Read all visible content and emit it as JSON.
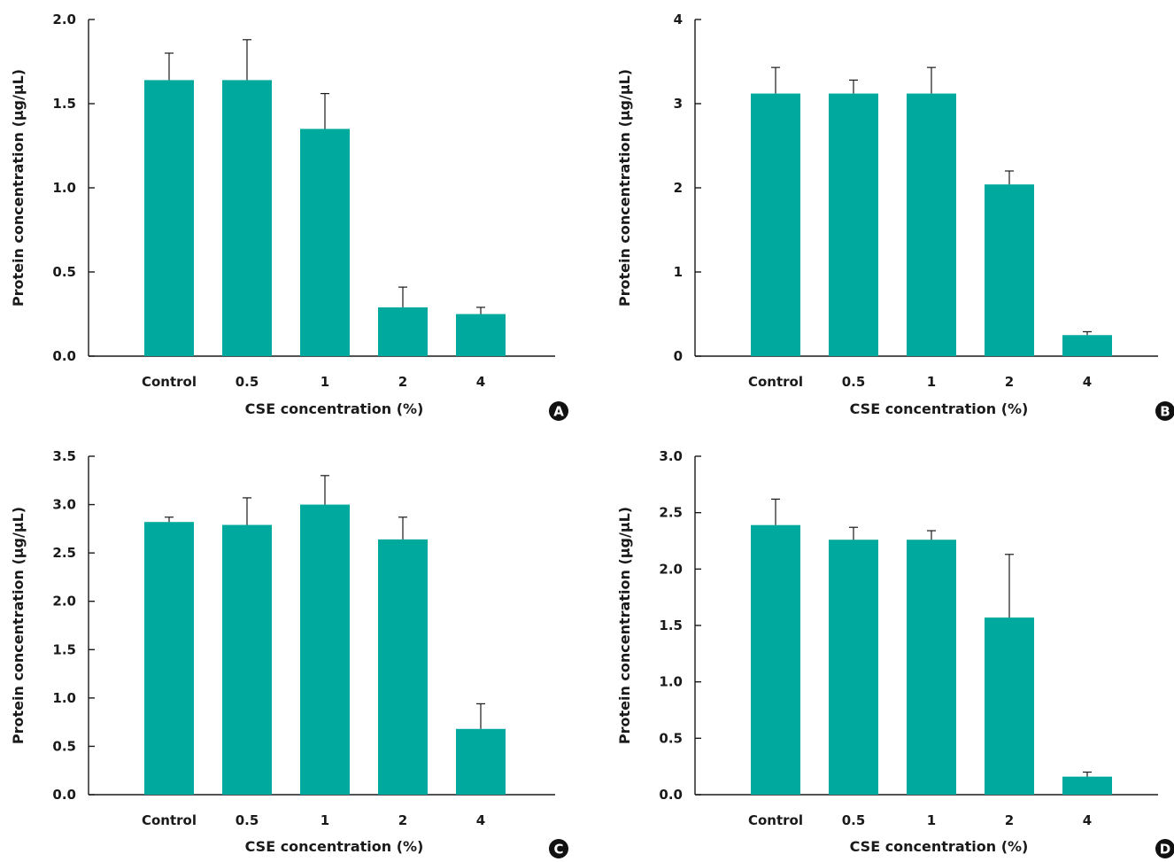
{
  "colors": {
    "bar": "#00a99d",
    "axis": "#1a1a1a",
    "badge": "#111111"
  },
  "chart_data": [
    {
      "type": "bar",
      "panel_label": "A",
      "categories": [
        "Control",
        "0.5",
        "1",
        "2",
        "4"
      ],
      "values": [
        1.64,
        1.64,
        1.35,
        0.29,
        0.25
      ],
      "errors": [
        0.16,
        0.24,
        0.21,
        0.12,
        0.04
      ],
      "xlabel": "CSE concentration (%)",
      "ylabel": "Protein concentration (μg/μL)",
      "ylim": [
        0,
        2.0
      ],
      "yticks": [
        "0.0",
        "0.5",
        "1.0",
        "1.5",
        "2.0"
      ],
      "grid": false
    },
    {
      "type": "bar",
      "panel_label": "B",
      "categories": [
        "Control",
        "0.5",
        "1",
        "2",
        "4"
      ],
      "values": [
        3.12,
        3.12,
        3.12,
        2.04,
        0.25
      ],
      "errors": [
        0.31,
        0.16,
        0.31,
        0.16,
        0.04
      ],
      "xlabel": "CSE concentration (%)",
      "ylabel": "Protein concentration (μg/μL)",
      "ylim": [
        0,
        4
      ],
      "yticks": [
        "0",
        "1",
        "2",
        "3",
        "4"
      ],
      "grid": false
    },
    {
      "type": "bar",
      "panel_label": "C",
      "categories": [
        "Control",
        "0.5",
        "1",
        "2",
        "4"
      ],
      "values": [
        2.82,
        2.79,
        3.0,
        2.64,
        0.68
      ],
      "errors": [
        0.05,
        0.28,
        0.3,
        0.23,
        0.26
      ],
      "xlabel": "CSE concentration (%)",
      "ylabel": "Protein concentration (μg/μL)",
      "ylim": [
        0,
        3.5
      ],
      "yticks": [
        "0.0",
        "0.5",
        "1.0",
        "1.5",
        "2.0",
        "2.5",
        "3.0",
        "3.5"
      ],
      "grid": false
    },
    {
      "type": "bar",
      "panel_label": "D",
      "categories": [
        "Control",
        "0.5",
        "1",
        "2",
        "4"
      ],
      "values": [
        2.39,
        2.26,
        2.26,
        1.57,
        0.16
      ],
      "errors": [
        0.23,
        0.11,
        0.08,
        0.56,
        0.04
      ],
      "xlabel": "CSE concentration (%)",
      "ylabel": "Protein concentration (μg/μL)",
      "ylim": [
        0,
        3.0
      ],
      "yticks": [
        "0.0",
        "0.5",
        "1.0",
        "1.5",
        "2.0",
        "2.5",
        "3.0"
      ],
      "grid": false
    }
  ]
}
